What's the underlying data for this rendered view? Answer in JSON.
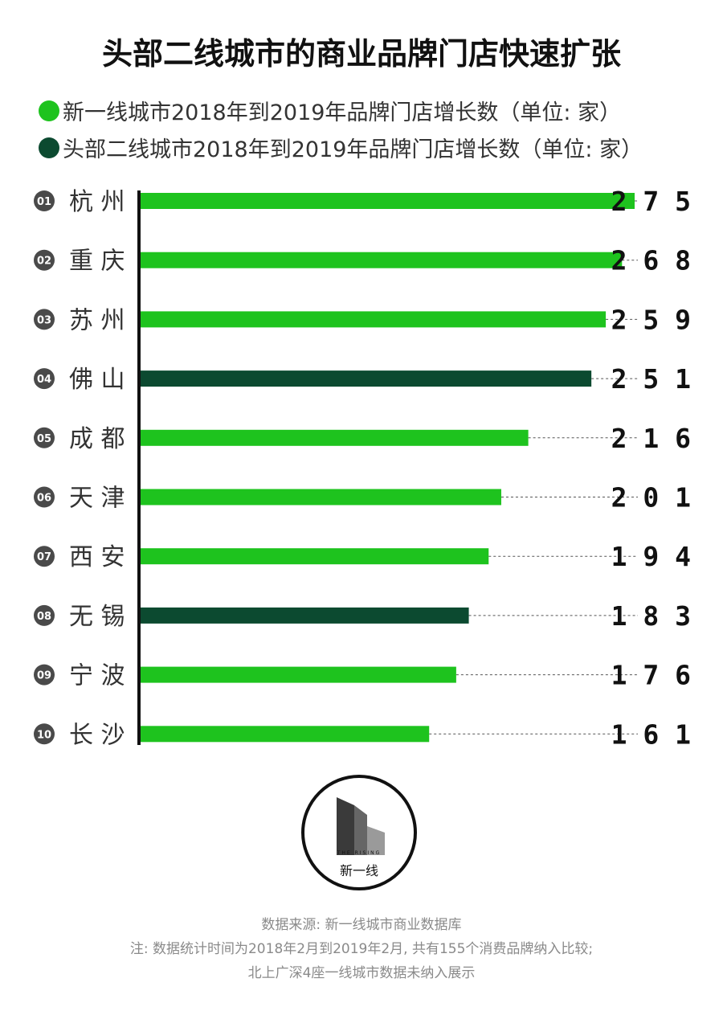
{
  "chart_data": {
    "type": "bar",
    "orientation": "horizontal",
    "title": "头部二线城市的商业品牌门店快速扩张",
    "legend": [
      {
        "name": "新一线城市2018年到2019年品牌门店增长数（单位: 家）",
        "color": "#1ec31e"
      },
      {
        "name": "头部二线城市2018年到2019年品牌门店增长数（单位: 家）",
        "color": "#0c4a30"
      }
    ],
    "categories": [
      "杭 州",
      "重 庆",
      "苏 州",
      "佛 山",
      "成 都",
      "天 津",
      "西 安",
      "无 锡",
      "宁 波",
      "长 沙"
    ],
    "ranks": [
      "01",
      "02",
      "03",
      "04",
      "05",
      "06",
      "07",
      "08",
      "09",
      "10"
    ],
    "values": [
      275,
      268,
      259,
      251,
      216,
      201,
      194,
      183,
      176,
      161
    ],
    "value_labels": [
      "2 7 5",
      "2 6 8",
      "2 5 9",
      "2 5 1",
      "2 1 6",
      "2 0 1",
      "1 9 4",
      "1 8 3",
      "1 7 6",
      "1 6 1"
    ],
    "groups": [
      0,
      0,
      0,
      1,
      0,
      0,
      0,
      1,
      0,
      0
    ],
    "xlim": [
      0,
      275
    ],
    "grid": false
  },
  "logo": {
    "small_text": "THE RISING",
    "text": "新一线"
  },
  "footnotes": [
    "数据来源: 新一线城市商业数据库",
    "注: 数据统计时间为2018年2月到2019年2月, 共有155个消费品牌纳入比较;",
    "北上广深4座一线城市数据未纳入展示"
  ]
}
